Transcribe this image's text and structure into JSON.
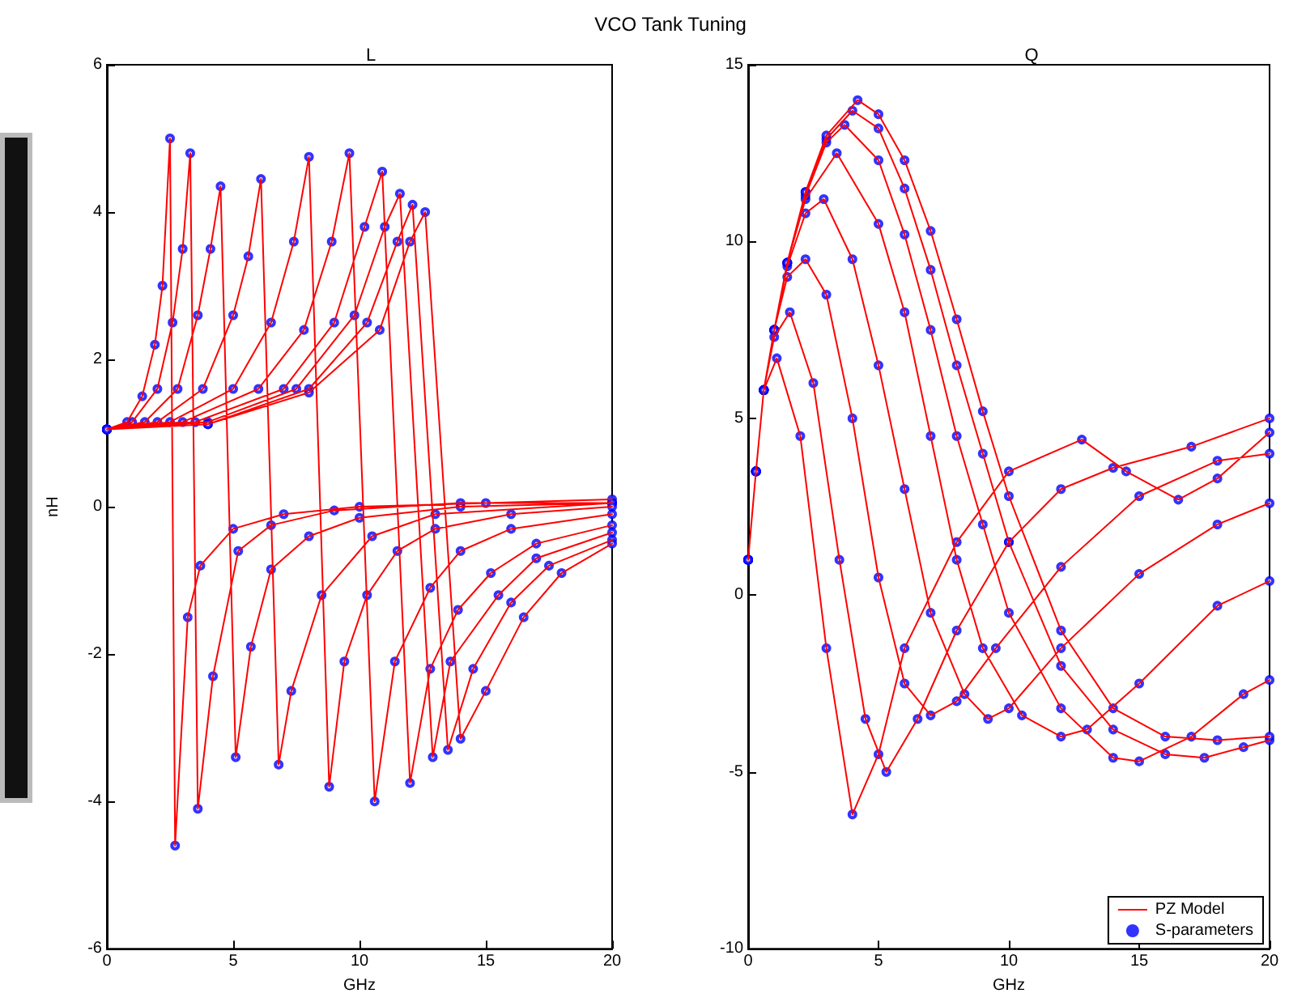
{
  "chart_data": [
    {
      "type": "line",
      "title": "L",
      "annotations": [
        "VCO Tank Tuning"
      ],
      "xlabel": "GHz",
      "ylabel": "nH",
      "xlim": [
        0,
        20
      ],
      "xticks": [
        0,
        5,
        10,
        15,
        20
      ],
      "ylim": [
        -6,
        6
      ],
      "yticks": [
        -6,
        -4,
        -2,
        0,
        2,
        4,
        6
      ],
      "grid": false,
      "legend": false,
      "series": [
        {
          "color": "#ff0000",
          "marker": "none",
          "line_style": "solid",
          "x": [
            0,
            0.8,
            1.4,
            1.9,
            2.2,
            2.5,
            2.7,
            3.2,
            3.7,
            5,
            7,
            10,
            15,
            20,
            null,
            0,
            1,
            2,
            2.6,
            3.0,
            3.3,
            3.6,
            4.2,
            5.2,
            6.5,
            9,
            14,
            20,
            null,
            0,
            1.5,
            2.8,
            3.6,
            4.1,
            4.5,
            5.1,
            5.7,
            6.5,
            8,
            10,
            14,
            20,
            null,
            0,
            2,
            3.8,
            5.0,
            5.6,
            6.1,
            6.8,
            7.3,
            8.5,
            10.5,
            13,
            20,
            null,
            0,
            2.5,
            5,
            6.5,
            7.4,
            8,
            8.8,
            9.4,
            10.3,
            11.5,
            13,
            16,
            20,
            null,
            0,
            3,
            6,
            7.8,
            8.9,
            9.6,
            10.6,
            11.4,
            12.8,
            14,
            16,
            20,
            null,
            0,
            3.5,
            7,
            9,
            10.2,
            10.9,
            12.0,
            12.8,
            13.9,
            15.2,
            17,
            20,
            null,
            0,
            4,
            7.5,
            9.8,
            11,
            11.6,
            12.9,
            13.6,
            15.5,
            17,
            20,
            null,
            0,
            4,
            8,
            10.3,
            11.5,
            12.1,
            13.5,
            14.5,
            16,
            17.5,
            20,
            null,
            0,
            4,
            8,
            10.8,
            12,
            12.6,
            14.0,
            15,
            16.5,
            18,
            20
          ],
          "values": [
            1.05,
            1.15,
            1.5,
            2.2,
            3.0,
            5.0,
            -4.6,
            -1.5,
            -0.8,
            -0.3,
            -0.1,
            0,
            0.05,
            0.1,
            null,
            1.05,
            1.15,
            1.6,
            2.5,
            3.5,
            4.8,
            -4.1,
            -2.3,
            -0.6,
            -0.25,
            -0.05,
            0.05,
            0.05,
            null,
            1.05,
            1.15,
            1.6,
            2.6,
            3.5,
            4.35,
            -3.4,
            -1.9,
            -0.85,
            -0.4,
            -0.15,
            0,
            0.05,
            null,
            1.05,
            1.15,
            1.6,
            2.6,
            3.4,
            4.45,
            -3.5,
            -2.5,
            -1.2,
            -0.4,
            -0.1,
            0.05,
            null,
            1.05,
            1.15,
            1.6,
            2.5,
            3.6,
            4.75,
            -3.8,
            -2.1,
            -1.2,
            -0.6,
            -0.3,
            -0.1,
            0,
            null,
            1.05,
            1.15,
            1.6,
            2.4,
            3.6,
            4.8,
            -4.0,
            -2.1,
            -1.1,
            -0.6,
            -0.3,
            -0.1,
            null,
            1.05,
            1.15,
            1.6,
            2.5,
            3.8,
            4.55,
            -3.75,
            -2.2,
            -1.4,
            -0.9,
            -0.5,
            -0.25,
            null,
            1.05,
            1.15,
            1.6,
            2.6,
            3.8,
            4.25,
            -3.4,
            -2.1,
            -1.2,
            -0.7,
            -0.35,
            null,
            1.05,
            1.12,
            1.6,
            2.5,
            3.6,
            4.1,
            -3.3,
            -2.2,
            -1.3,
            -0.8,
            -0.45,
            null,
            1.05,
            1.12,
            1.55,
            2.4,
            3.6,
            4.0,
            -3.15,
            -2.5,
            -1.5,
            -0.9,
            -0.5
          ]
        },
        {
          "type": "scatter",
          "color": "#0000ff",
          "marker": "circle",
          "x": [
            0,
            0.8,
            1.4,
            1.9,
            2.2,
            2.5,
            2.7,
            3.2,
            3.7,
            5,
            7,
            10,
            15,
            20,
            null,
            0,
            1,
            2,
            2.6,
            3.0,
            3.3,
            3.6,
            4.2,
            5.2,
            6.5,
            9,
            14,
            20,
            null,
            0,
            1.5,
            2.8,
            3.6,
            4.1,
            4.5,
            5.1,
            5.7,
            6.5,
            8,
            10,
            14,
            20,
            null,
            0,
            2,
            3.8,
            5.0,
            5.6,
            6.1,
            6.8,
            7.3,
            8.5,
            10.5,
            13,
            20,
            null,
            0,
            2.5,
            5,
            6.5,
            7.4,
            8,
            8.8,
            9.4,
            10.3,
            11.5,
            13,
            16,
            20,
            null,
            0,
            3,
            6,
            7.8,
            8.9,
            9.6,
            10.6,
            11.4,
            12.8,
            14,
            16,
            20,
            null,
            0,
            3.5,
            7,
            9,
            10.2,
            10.9,
            12.0,
            12.8,
            13.9,
            15.2,
            17,
            20,
            null,
            0,
            4,
            7.5,
            9.8,
            11,
            11.6,
            12.9,
            13.6,
            15.5,
            17,
            20,
            null,
            0,
            4,
            8,
            10.3,
            11.5,
            12.1,
            13.5,
            14.5,
            16,
            17.5,
            20,
            null,
            0,
            4,
            8,
            10.8,
            12,
            12.6,
            14.0,
            15,
            16.5,
            18,
            20
          ],
          "values": [
            1.05,
            1.15,
            1.5,
            2.2,
            3.0,
            5.0,
            -4.6,
            -1.5,
            -0.8,
            -0.3,
            -0.1,
            0,
            0.05,
            0.1,
            null,
            1.05,
            1.15,
            1.6,
            2.5,
            3.5,
            4.8,
            -4.1,
            -2.3,
            -0.6,
            -0.25,
            -0.05,
            0.05,
            0.05,
            null,
            1.05,
            1.15,
            1.6,
            2.6,
            3.5,
            4.35,
            -3.4,
            -1.9,
            -0.85,
            -0.4,
            -0.15,
            0,
            0.05,
            null,
            1.05,
            1.15,
            1.6,
            2.6,
            3.4,
            4.45,
            -3.5,
            -2.5,
            -1.2,
            -0.4,
            -0.1,
            0.05,
            null,
            1.05,
            1.15,
            1.6,
            2.5,
            3.6,
            4.75,
            -3.8,
            -2.1,
            -1.2,
            -0.6,
            -0.3,
            -0.1,
            0,
            null,
            1.05,
            1.15,
            1.6,
            2.4,
            3.6,
            4.8,
            -4.0,
            -2.1,
            -1.1,
            -0.6,
            -0.3,
            -0.1,
            null,
            1.05,
            1.15,
            1.6,
            2.5,
            3.8,
            4.55,
            -3.75,
            -2.2,
            -1.4,
            -0.9,
            -0.5,
            -0.25,
            null,
            1.05,
            1.15,
            1.6,
            2.6,
            3.8,
            4.25,
            -3.4,
            -2.1,
            -1.2,
            -0.7,
            -0.35,
            null,
            1.05,
            1.12,
            1.6,
            2.5,
            3.6,
            4.1,
            -3.3,
            -2.2,
            -1.3,
            -0.8,
            -0.45,
            null,
            1.05,
            1.12,
            1.55,
            2.4,
            3.6,
            4.0,
            -3.15,
            -2.5,
            -1.5,
            -0.9,
            -0.5
          ]
        }
      ]
    },
    {
      "type": "line",
      "title": "Q",
      "xlabel": "GHz",
      "xlim": [
        0,
        20
      ],
      "xticks": [
        0,
        5,
        10,
        15,
        20
      ],
      "ylim": [
        -10,
        15
      ],
      "yticks": [
        -10,
        -5,
        0,
        5,
        10,
        15
      ],
      "grid": false,
      "legend": "bottom right",
      "series": [
        {
          "name": "PZ Model",
          "color": "#ff0000",
          "marker": "none",
          "line_style": "solid",
          "x": [
            0,
            0.3,
            0.6,
            1.1,
            2,
            3,
            4,
            5,
            6,
            8,
            10,
            12.8,
            14.5,
            16.5,
            18,
            20,
            null,
            0,
            0.3,
            0.6,
            1,
            1.6,
            2.5,
            3.5,
            4.5,
            5.3,
            6.5,
            8,
            10,
            12,
            14,
            17,
            20,
            null,
            0,
            0.3,
            0.6,
            1,
            1.5,
            2.2,
            3,
            4,
            5,
            6,
            7,
            8,
            9.5,
            12,
            15,
            18,
            20,
            null,
            0,
            0.3,
            0.6,
            1,
            1.5,
            2.2,
            2.9,
            4,
            5,
            6,
            7,
            8.3,
            9.2,
            10,
            12,
            15,
            18,
            20,
            null,
            0,
            0.3,
            0.6,
            1,
            1.5,
            2.2,
            3.4,
            5,
            6,
            7,
            8,
            9,
            10.5,
            12,
            13,
            15,
            18,
            20,
            null,
            0,
            0.3,
            0.6,
            1,
            1.5,
            2.2,
            3,
            3.7,
            5,
            6,
            7,
            8,
            9,
            10,
            12,
            14,
            15,
            17,
            19,
            20,
            null,
            0,
            0.3,
            0.6,
            1,
            1.5,
            2.2,
            3,
            4,
            5,
            6,
            7,
            8,
            9,
            10,
            12,
            14,
            16,
            17.5,
            19,
            20,
            null,
            0,
            0.3,
            0.6,
            1,
            1.5,
            2.2,
            3,
            4.2,
            5,
            6,
            7,
            8,
            9,
            10,
            12,
            14,
            16,
            18,
            20
          ],
          "values": [
            1,
            3.5,
            5.8,
            6.7,
            4.5,
            -1.5,
            -6.2,
            -4.5,
            -1.5,
            1.5,
            3.5,
            4.4,
            3.5,
            2.7,
            3.3,
            4.6,
            null,
            1,
            3.5,
            5.8,
            7.3,
            8,
            6,
            1,
            -3.5,
            -5,
            -3.5,
            -1,
            1.5,
            3,
            3.6,
            4.2,
            5,
            null,
            1,
            3.5,
            5.8,
            7.5,
            9,
            9.5,
            8.5,
            5,
            0.5,
            -2.5,
            -3.4,
            -3,
            -1.5,
            0.8,
            2.8,
            3.8,
            4,
            null,
            1,
            3.5,
            5.8,
            7.5,
            9.3,
            10.8,
            11.2,
            9.5,
            6.5,
            3,
            -0.5,
            -2.8,
            -3.5,
            -3.2,
            -1.5,
            0.6,
            2,
            2.6,
            null,
            1,
            3.5,
            5.8,
            7.5,
            9.4,
            11.2,
            12.5,
            10.5,
            8,
            4.5,
            1,
            -1.5,
            -3.4,
            -4,
            -3.8,
            -2.5,
            -0.3,
            0.4,
            null,
            1,
            3.5,
            5.8,
            7.5,
            9.4,
            11.3,
            12.8,
            13.3,
            12.3,
            10.2,
            7.5,
            4.5,
            2,
            -0.5,
            -3.2,
            -4.6,
            -4.7,
            -4,
            -2.8,
            -2.4,
            null,
            1,
            3.5,
            5.8,
            7.5,
            9.4,
            11.4,
            12.9,
            13.7,
            13.2,
            11.5,
            9.2,
            6.5,
            4,
            1.5,
            -2,
            -3.8,
            -4.5,
            -4.6,
            -4.3,
            -4.1,
            null,
            1,
            3.5,
            5.8,
            7.5,
            9.4,
            11.4,
            13,
            14,
            13.6,
            12.3,
            10.3,
            7.8,
            5.2,
            2.8,
            -1,
            -3.2,
            -4,
            -4.1,
            -4
          ]
        },
        {
          "type": "scatter",
          "name": "S-parameters",
          "color": "#0000ff",
          "marker": "circle",
          "x": [
            0,
            0.3,
            0.6,
            1.1,
            2,
            3,
            4,
            5,
            6,
            8,
            10,
            12.8,
            14.5,
            16.5,
            18,
            20,
            null,
            0,
            0.3,
            0.6,
            1,
            1.6,
            2.5,
            3.5,
            4.5,
            5.3,
            6.5,
            8,
            10,
            12,
            14,
            17,
            20,
            null,
            0,
            0.3,
            0.6,
            1,
            1.5,
            2.2,
            3,
            4,
            5,
            6,
            7,
            8,
            9.5,
            12,
            15,
            18,
            20,
            null,
            0,
            0.3,
            0.6,
            1,
            1.5,
            2.2,
            2.9,
            4,
            5,
            6,
            7,
            8.3,
            9.2,
            10,
            12,
            15,
            18,
            20,
            null,
            0,
            0.3,
            0.6,
            1,
            1.5,
            2.2,
            3.4,
            5,
            6,
            7,
            8,
            9,
            10.5,
            12,
            13,
            15,
            18,
            20,
            null,
            0,
            0.3,
            0.6,
            1,
            1.5,
            2.2,
            3,
            3.7,
            5,
            6,
            7,
            8,
            9,
            10,
            12,
            14,
            15,
            17,
            19,
            20,
            null,
            0,
            0.3,
            0.6,
            1,
            1.5,
            2.2,
            3,
            4,
            5,
            6,
            7,
            8,
            9,
            10,
            12,
            14,
            16,
            17.5,
            19,
            20,
            null,
            0,
            0.3,
            0.6,
            1,
            1.5,
            2.2,
            3,
            4.2,
            5,
            6,
            7,
            8,
            9,
            10,
            12,
            14,
            16,
            18,
            20
          ],
          "values": [
            1,
            3.5,
            5.8,
            6.7,
            4.5,
            -1.5,
            -6.2,
            -4.5,
            -1.5,
            1.5,
            3.5,
            4.4,
            3.5,
            2.7,
            3.3,
            4.6,
            null,
            1,
            3.5,
            5.8,
            7.3,
            8,
            6,
            1,
            -3.5,
            -5,
            -3.5,
            -1,
            1.5,
            3,
            3.6,
            4.2,
            5,
            null,
            1,
            3.5,
            5.8,
            7.5,
            9,
            9.5,
            8.5,
            5,
            0.5,
            -2.5,
            -3.4,
            -3,
            -1.5,
            0.8,
            2.8,
            3.8,
            4,
            null,
            1,
            3.5,
            5.8,
            7.5,
            9.3,
            10.8,
            11.2,
            9.5,
            6.5,
            3,
            -0.5,
            -2.8,
            -3.5,
            -3.2,
            -1.5,
            0.6,
            2,
            2.6,
            null,
            1,
            3.5,
            5.8,
            7.5,
            9.4,
            11.2,
            12.5,
            10.5,
            8,
            4.5,
            1,
            -1.5,
            -3.4,
            -4,
            -3.8,
            -2.5,
            -0.3,
            0.4,
            null,
            1,
            3.5,
            5.8,
            7.5,
            9.4,
            11.3,
            12.8,
            13.3,
            12.3,
            10.2,
            7.5,
            4.5,
            2,
            -0.5,
            -3.2,
            -4.6,
            -4.7,
            -4,
            -2.8,
            -2.4,
            null,
            1,
            3.5,
            5.8,
            7.5,
            9.4,
            11.4,
            12.9,
            13.7,
            13.2,
            11.5,
            9.2,
            6.5,
            4,
            1.5,
            -2,
            -3.8,
            -4.5,
            -4.6,
            -4.3,
            -4.1,
            null,
            1,
            3.5,
            5.8,
            7.5,
            9.4,
            11.4,
            13,
            14,
            13.6,
            12.3,
            10.3,
            7.8,
            5.2,
            2.8,
            -1,
            -3.2,
            -4,
            -4.1,
            -4
          ]
        }
      ]
    }
  ]
}
